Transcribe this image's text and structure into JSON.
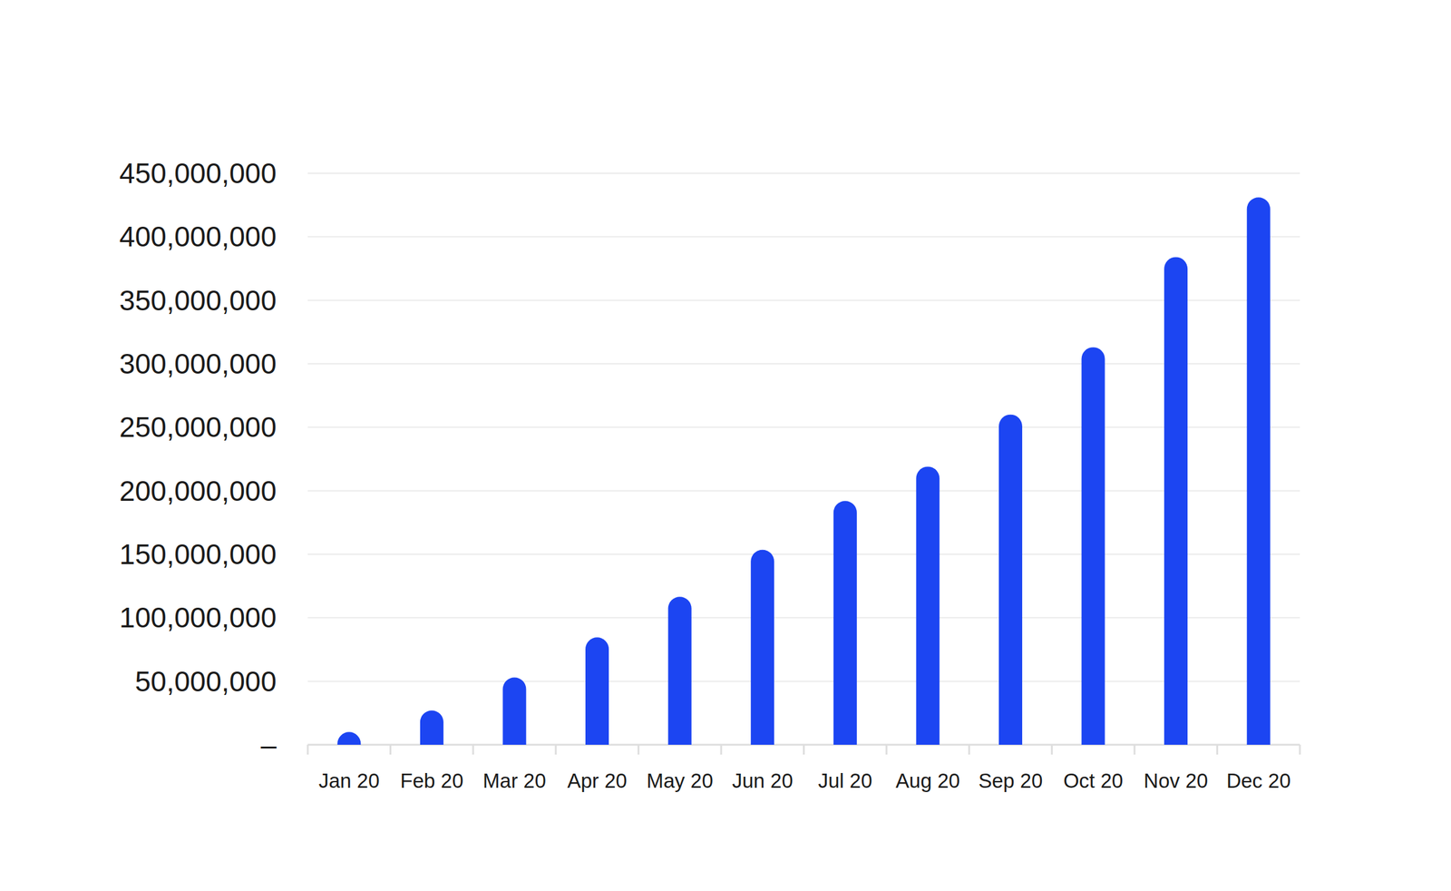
{
  "chart_data": {
    "type": "bar",
    "categories": [
      "Jan 20",
      "Feb 20",
      "Mar 20",
      "Apr 20",
      "May 20",
      "Jun 20",
      "Jul 20",
      "Aug 20",
      "Sep 20",
      "Oct 20",
      "Nov 20",
      "Dec 20"
    ],
    "values": [
      10000000,
      27000000,
      53000000,
      84500000,
      116500000,
      153500000,
      192000000,
      219000000,
      260000000,
      313000000,
      384000000,
      431000000
    ],
    "color": "#1c45f2",
    "ylim": [
      0,
      450000000
    ],
    "yticks": [
      {
        "value": 0,
        "label": "–"
      },
      {
        "value": 50000000,
        "label": "50,000,000"
      },
      {
        "value": 100000000,
        "label": "100,000,000"
      },
      {
        "value": 150000000,
        "label": "150,000,000"
      },
      {
        "value": 200000000,
        "label": "200,000,000"
      },
      {
        "value": 250000000,
        "label": "250,000,000"
      },
      {
        "value": 300000000,
        "label": "300,000,000"
      },
      {
        "value": 350000000,
        "label": "350,000,000"
      },
      {
        "value": 400000000,
        "label": "400,000,000"
      },
      {
        "value": 450000000,
        "label": "450,000,000"
      }
    ],
    "grid": true
  }
}
